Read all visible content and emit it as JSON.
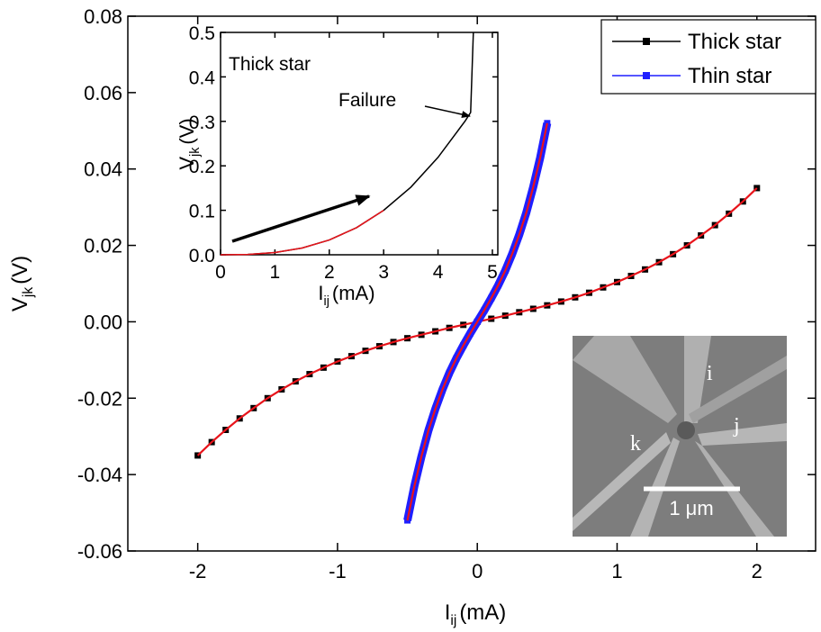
{
  "chart_data": [
    {
      "type": "line",
      "xlabel": {
        "main": "I",
        "sub": "ij",
        "unit": "(mA)"
      },
      "ylabel": {
        "main": "V",
        "sub": "jk",
        "unit": "(V)"
      },
      "xlim": [
        -2.5,
        2.42
      ],
      "ylim": [
        -0.06,
        0.08
      ],
      "xticks": [
        -2,
        -1,
        0,
        1,
        2
      ],
      "yticks": [
        -0.06,
        -0.04,
        -0.02,
        {
          "value": 0,
          "label": "0.00"
        },
        0.02,
        0.04,
        0.06,
        0.08
      ],
      "legend": "upper right",
      "series": [
        {
          "name": "Thick star",
          "color": "#000000",
          "line_color": "#e8141b",
          "x": [
            -2.0,
            -1.9,
            -1.8,
            -1.7,
            -1.6,
            -1.5,
            -1.4,
            -1.3,
            -1.2,
            -1.1,
            -1.0,
            -0.9,
            -0.8,
            -0.7,
            -0.6,
            -0.5,
            -0.4,
            -0.3,
            -0.2,
            -0.1,
            0.0,
            0.1,
            0.2,
            0.3,
            0.4,
            0.5,
            0.6,
            0.7,
            0.8,
            0.9,
            1.0,
            1.1,
            1.2,
            1.3,
            1.4,
            1.5,
            1.6,
            1.7,
            1.8,
            1.9,
            2.0
          ],
          "values": [
            -0.035,
            -0.0315,
            -0.0283,
            -0.0253,
            -0.0226,
            -0.02,
            -0.0177,
            -0.0156,
            -0.0137,
            -0.012,
            -0.0104,
            -0.009,
            -0.0076,
            -0.0064,
            -0.0053,
            -0.0043,
            -0.0034,
            -0.0025,
            -0.0016,
            -0.0008,
            0,
            0.0008,
            0.0016,
            0.0025,
            0.0034,
            0.0043,
            0.0053,
            0.0064,
            0.0076,
            0.009,
            0.0104,
            0.012,
            0.0137,
            0.0156,
            0.0177,
            0.02,
            0.0226,
            0.0253,
            0.0283,
            0.0315,
            0.035
          ]
        },
        {
          "name": "Thin star",
          "color": "#1f1fff",
          "line_color": "#e8141b",
          "x": [
            -0.5,
            -0.45,
            -0.4,
            -0.35,
            -0.3,
            -0.25,
            -0.2,
            -0.15,
            -0.1,
            -0.05,
            0,
            0.05,
            0.1,
            0.15,
            0.2,
            0.25,
            0.3,
            0.35,
            0.4,
            0.45,
            0.5
          ],
          "values": [
            -0.052,
            -0.043,
            -0.0353,
            -0.0285,
            -0.0228,
            -0.0178,
            -0.0134,
            -0.0096,
            -0.0062,
            -0.003,
            0,
            0.003,
            0.0062,
            0.0096,
            0.0134,
            0.0178,
            0.0228,
            0.0285,
            0.0353,
            0.043,
            0.052
          ]
        }
      ]
    },
    {
      "type": "line",
      "title": "Thick star",
      "annotation": "Failure",
      "xlabel": {
        "main": "I",
        "sub": "ij",
        "unit": "(mA)"
      },
      "ylabel": {
        "main": "V",
        "sub": "jk",
        "unit": "(V)"
      },
      "xlim": [
        0,
        5.1
      ],
      "ylim": [
        0,
        0.5
      ],
      "xticks": [
        0,
        1,
        2,
        3,
        4,
        5
      ],
      "yticks": [
        {
          "value": 0,
          "label": "0.0"
        },
        0.1,
        0.2,
        0.3,
        0.4,
        0.5
      ],
      "series": [
        {
          "color": "#000000",
          "x": [
            0,
            0.5,
            1,
            1.5,
            2,
            2.5,
            3,
            3.5,
            4,
            4.5,
            4.6,
            4.65
          ],
          "values": [
            0,
            0.0008,
            0.005,
            0.0152,
            0.0332,
            0.0609,
            0.1,
            0.152,
            0.219,
            0.301,
            0.32,
            0.5
          ]
        },
        {
          "color": "#e8141b",
          "x": [
            0,
            0.5,
            1,
            1.5,
            2,
            2.5,
            3,
            3.5,
            4,
            4.5,
            4.6,
            4.65
          ],
          "values": [
            0,
            0.0008,
            0.005,
            0.0152,
            0.0332,
            0.0609,
            0.1,
            null,
            null,
            null,
            null,
            null
          ]
        }
      ]
    }
  ],
  "image": {
    "labels": [
      "i",
      "j",
      "k"
    ],
    "scale_bar": "1 μm"
  }
}
